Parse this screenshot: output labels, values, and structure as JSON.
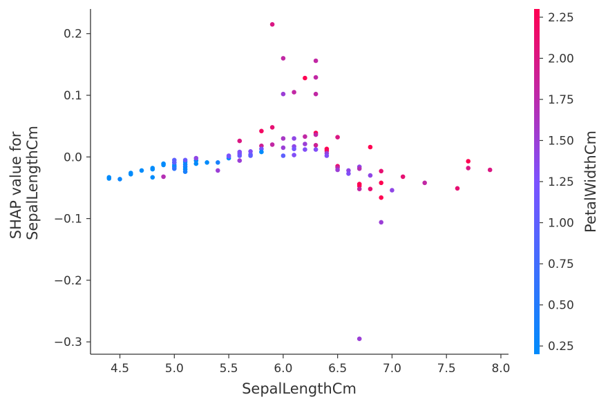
{
  "chart_data": {
    "type": "scatter",
    "xlabel": "SepalLengthCm",
    "ylabel": [
      "SHAP value for",
      "SepalLengthCm"
    ],
    "xlim": [
      4.23,
      8.07
    ],
    "ylim": [
      -0.32,
      0.24
    ],
    "xticks": [
      "4.5",
      "5.0",
      "5.5",
      "6.0",
      "6.5",
      "7.0",
      "7.5",
      "8.0"
    ],
    "yticks": [
      "0.2",
      "0.1",
      "0.0",
      "−0.1",
      "−0.2",
      "−0.3"
    ],
    "colorbar": {
      "label": "PetalWidthCm",
      "range": [
        0.2,
        2.3
      ],
      "ticks": [
        "2.25",
        "2.00",
        "1.75",
        "1.50",
        "1.25",
        "1.00",
        "0.75",
        "0.50",
        "0.25"
      ],
      "color_low": "#008bfb",
      "color_mid": "#7c52ff",
      "color_high": "#ff0051"
    },
    "points": [
      [
        4.4,
        -0.033,
        0.2
      ],
      [
        4.4,
        -0.035,
        0.2
      ],
      [
        4.5,
        -0.036,
        0.3
      ],
      [
        4.6,
        -0.026,
        0.2
      ],
      [
        4.6,
        -0.028,
        0.2
      ],
      [
        4.7,
        -0.022,
        0.2
      ],
      [
        4.8,
        -0.033,
        0.2
      ],
      [
        4.8,
        -0.018,
        0.2
      ],
      [
        4.8,
        -0.02,
        0.1
      ],
      [
        4.9,
        -0.011,
        0.2
      ],
      [
        4.9,
        -0.013,
        0.1
      ],
      [
        4.9,
        -0.032,
        1.7
      ],
      [
        5.0,
        -0.009,
        0.2
      ],
      [
        5.0,
        -0.013,
        0.2
      ],
      [
        5.0,
        -0.016,
        0.3
      ],
      [
        5.0,
        -0.019,
        0.6
      ],
      [
        5.0,
        -0.005,
        1.0
      ],
      [
        5.0,
        -0.009,
        1.0
      ],
      [
        5.1,
        -0.008,
        0.2
      ],
      [
        5.1,
        -0.012,
        0.3
      ],
      [
        5.1,
        -0.016,
        0.4
      ],
      [
        5.1,
        -0.02,
        0.2
      ],
      [
        5.1,
        -0.024,
        0.4
      ],
      [
        5.1,
        -0.005,
        1.1
      ],
      [
        5.2,
        -0.011,
        0.2
      ],
      [
        5.2,
        -0.006,
        0.2
      ],
      [
        5.2,
        -0.002,
        1.4
      ],
      [
        5.3,
        -0.009,
        0.2
      ],
      [
        5.4,
        -0.009,
        0.4
      ],
      [
        5.4,
        -0.022,
        1.5
      ],
      [
        5.5,
        -0.002,
        0.2
      ],
      [
        5.5,
        0.002,
        1.3
      ],
      [
        5.5,
        0.001,
        1.2
      ],
      [
        5.6,
        0.026,
        2.0
      ],
      [
        5.6,
        0.008,
        1.3
      ],
      [
        5.6,
        0.005,
        1.3
      ],
      [
        5.6,
        0.002,
        1.1
      ],
      [
        5.6,
        -0.006,
        1.5
      ],
      [
        5.7,
        0.009,
        1.3
      ],
      [
        5.7,
        0.004,
        1.2
      ],
      [
        5.7,
        0.002,
        1.0
      ],
      [
        5.8,
        0.042,
        2.2
      ],
      [
        5.8,
        0.018,
        1.9
      ],
      [
        5.8,
        0.013,
        1.2
      ],
      [
        5.8,
        0.008,
        0.2
      ],
      [
        5.9,
        0.215,
        2.0
      ],
      [
        5.9,
        0.048,
        2.1
      ],
      [
        5.9,
        0.02,
        1.8
      ],
      [
        6.0,
        0.16,
        1.8
      ],
      [
        6.0,
        0.102,
        1.5
      ],
      [
        6.0,
        0.03,
        1.6
      ],
      [
        6.0,
        0.015,
        1.5
      ],
      [
        6.0,
        0.002,
        1.0
      ],
      [
        6.1,
        0.105,
        1.8
      ],
      [
        6.1,
        0.03,
        1.4
      ],
      [
        6.1,
        0.017,
        1.4
      ],
      [
        6.1,
        0.013,
        1.2
      ],
      [
        6.1,
        0.003,
        1.3
      ],
      [
        6.2,
        0.128,
        2.3
      ],
      [
        6.2,
        0.033,
        1.8
      ],
      [
        6.2,
        0.021,
        1.5
      ],
      [
        6.2,
        0.012,
        1.3
      ],
      [
        6.3,
        0.156,
        1.8
      ],
      [
        6.3,
        0.129,
        1.8
      ],
      [
        6.3,
        0.102,
        1.8
      ],
      [
        6.3,
        0.039,
        2.4
      ],
      [
        6.3,
        0.036,
        1.8
      ],
      [
        6.3,
        0.019,
        1.9
      ],
      [
        6.3,
        0.012,
        1.3
      ],
      [
        6.4,
        0.013,
        2.3
      ],
      [
        6.4,
        0.01,
        2.2
      ],
      [
        6.4,
        0.006,
        1.5
      ],
      [
        6.4,
        0.002,
        1.3
      ],
      [
        6.5,
        0.032,
        2.0
      ],
      [
        6.5,
        -0.015,
        2.2
      ],
      [
        6.5,
        -0.017,
        1.8
      ],
      [
        6.5,
        -0.021,
        1.5
      ],
      [
        6.6,
        -0.022,
        1.4
      ],
      [
        6.6,
        -0.027,
        1.3
      ],
      [
        6.7,
        -0.016,
        1.4
      ],
      [
        6.7,
        -0.019,
        1.7
      ],
      [
        6.7,
        -0.044,
        2.5
      ],
      [
        6.7,
        -0.047,
        2.3
      ],
      [
        6.7,
        -0.052,
        1.8
      ],
      [
        6.7,
        -0.295,
        1.5
      ],
      [
        6.8,
        0.016,
        2.3
      ],
      [
        6.8,
        -0.03,
        1.4
      ],
      [
        6.8,
        -0.052,
        2.1
      ],
      [
        6.9,
        -0.023,
        2.1
      ],
      [
        6.9,
        -0.042,
        2.3
      ],
      [
        6.9,
        -0.066,
        2.3
      ],
      [
        6.9,
        -0.106,
        1.5
      ],
      [
        7.0,
        -0.054,
        1.4
      ],
      [
        7.1,
        -0.032,
        2.1
      ],
      [
        7.3,
        -0.042,
        1.8
      ],
      [
        7.6,
        -0.051,
        2.1
      ],
      [
        7.7,
        -0.007,
        2.3
      ],
      [
        7.7,
        -0.018,
        2.0
      ],
      [
        7.9,
        -0.021,
        2.0
      ]
    ]
  }
}
